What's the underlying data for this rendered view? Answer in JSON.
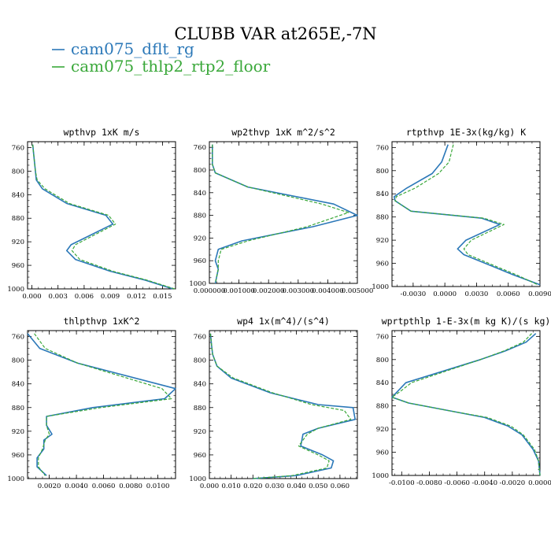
{
  "figure": {
    "title": "CLUBB VAR at265E,-7N",
    "legend": [
      {
        "name": "cam075_dflt_rg",
        "color": "#2b78b8",
        "dash": "solid"
      },
      {
        "name": "cam075_thlp2_rtp2_floor",
        "color": "#3aa83a",
        "dash": "dashed"
      }
    ]
  },
  "chart_data": [
    {
      "type": "line",
      "title": "wpthvp  1xK m/s",
      "xlim": [
        -0.0005,
        0.0165
      ],
      "ylim": [
        1000,
        750
      ],
      "xticks": [
        0.0,
        0.003,
        0.006,
        0.009,
        0.012,
        0.015
      ],
      "xtick_labels": [
        "0.000",
        "0.003",
        "0.006",
        "0.009",
        "0.012",
        "0.015"
      ],
      "yticks": [
        760,
        800,
        840,
        880,
        920,
        960,
        1000
      ],
      "series": [
        {
          "name": "cam075_dflt_rg",
          "points": [
            [
              0.0001,
              755
            ],
            [
              0.0002,
              770
            ],
            [
              0.0004,
              800
            ],
            [
              0.0005,
              815
            ],
            [
              0.0012,
              830
            ],
            [
              0.004,
              855
            ],
            [
              0.0085,
              875
            ],
            [
              0.0093,
              890
            ],
            [
              0.0045,
              925
            ],
            [
              0.004,
              935
            ],
            [
              0.005,
              950
            ],
            [
              0.009,
              970
            ],
            [
              0.013,
              985
            ],
            [
              0.0162,
              1000
            ]
          ]
        },
        {
          "name": "cam075_thlp2_rtp2_floor",
          "points": [
            [
              0.0001,
              755
            ],
            [
              0.0002,
              770
            ],
            [
              0.0004,
              800
            ],
            [
              0.0006,
              815
            ],
            [
              0.0015,
              830
            ],
            [
              0.0043,
              855
            ],
            [
              0.0088,
              875
            ],
            [
              0.0096,
              890
            ],
            [
              0.005,
              925
            ],
            [
              0.0046,
              935
            ],
            [
              0.0055,
              950
            ],
            [
              0.0093,
              970
            ],
            [
              0.0132,
              985
            ],
            [
              0.0164,
              1000
            ]
          ]
        }
      ]
    },
    {
      "type": "line",
      "title": "wp2thvp  1xK m^2/s^2",
      "xlim": [
        0.0,
        0.005
      ],
      "ylim": [
        1000,
        750
      ],
      "xticks": [
        0.0,
        0.001,
        0.002,
        0.003,
        0.004,
        0.005
      ],
      "xtick_labels": [
        "0.000000",
        "0.001000",
        "0.002000",
        "0.003000",
        "0.004000",
        "0.005000"
      ],
      "yticks": [
        760,
        800,
        840,
        880,
        920,
        960,
        1000
      ],
      "series": [
        {
          "name": "cam075_dflt_rg",
          "points": [
            [
              0.0001,
              755
            ],
            [
              0.0001,
              770
            ],
            [
              0.0001,
              790
            ],
            [
              0.0002,
              805
            ],
            [
              0.0013,
              830
            ],
            [
              0.0042,
              860
            ],
            [
              0.005,
              880
            ],
            [
              0.0035,
              900
            ],
            [
              0.0011,
              925
            ],
            [
              0.0003,
              940
            ],
            [
              0.0002,
              960
            ],
            [
              0.0003,
              975
            ],
            [
              0.0002,
              1000
            ]
          ]
        },
        {
          "name": "cam075_thlp2_rtp2_floor",
          "points": [
            [
              0.0001,
              755
            ],
            [
              0.0001,
              770
            ],
            [
              0.0001,
              790
            ],
            [
              0.0002,
              805
            ],
            [
              0.0013,
              830
            ],
            [
              0.0038,
              860
            ],
            [
              0.0047,
              875
            ],
            [
              0.0033,
              900
            ],
            [
              0.0013,
              925
            ],
            [
              0.0004,
              940
            ],
            [
              0.0003,
              960
            ],
            [
              0.0003,
              975
            ],
            [
              0.0002,
              1000
            ]
          ]
        }
      ]
    },
    {
      "type": "line",
      "title": "rtpthvp  1E-3x(kg/kg) K",
      "xlim": [
        -0.005,
        0.009
      ],
      "ylim": [
        1000,
        750
      ],
      "xticks": [
        -0.003,
        0.0,
        0.003,
        0.006,
        0.009
      ],
      "xtick_labels": [
        "-0.0030",
        "0.0000",
        "0.0030",
        "0.0060",
        "0.0090"
      ],
      "yticks": [
        760,
        800,
        840,
        880,
        920,
        960,
        1000
      ],
      "series": [
        {
          "name": "cam075_dflt_rg",
          "points": [
            [
              0.0003,
              755
            ],
            [
              -0.0003,
              785
            ],
            [
              -0.0012,
              805
            ],
            [
              -0.0036,
              830
            ],
            [
              -0.0048,
              845
            ],
            [
              -0.0047,
              852
            ],
            [
              -0.0032,
              870
            ],
            [
              0.0035,
              882
            ],
            [
              0.0052,
              893
            ],
            [
              0.002,
              920
            ],
            [
              0.0012,
              935
            ],
            [
              0.0018,
              945
            ],
            [
              0.0045,
              965
            ],
            [
              0.0065,
              980
            ],
            [
              0.009,
              997
            ]
          ]
        },
        {
          "name": "cam075_thlp2_rtp2_floor",
          "points": [
            [
              0.0008,
              755
            ],
            [
              0.0004,
              785
            ],
            [
              -0.0006,
              805
            ],
            [
              -0.0028,
              830
            ],
            [
              -0.0046,
              845
            ],
            [
              -0.0047,
              852
            ],
            [
              -0.0032,
              870
            ],
            [
              0.0037,
              882
            ],
            [
              0.0056,
              893
            ],
            [
              0.0025,
              920
            ],
            [
              0.0018,
              935
            ],
            [
              0.0022,
              945
            ],
            [
              0.0048,
              965
            ],
            [
              0.0068,
              980
            ],
            [
              0.0088,
              997
            ]
          ]
        }
      ]
    },
    {
      "type": "line",
      "title": "thlpthvp  1xK^2",
      "xlim": [
        0.0004,
        0.0113
      ],
      "ylim": [
        1000,
        750
      ],
      "xticks": [
        0.002,
        0.004,
        0.006,
        0.008,
        0.01
      ],
      "xtick_labels": [
        "0.0020",
        "0.0040",
        "0.0060",
        "0.0080",
        "0.0100"
      ],
      "yticks": [
        760,
        800,
        840,
        880,
        920,
        960,
        1000
      ],
      "series": [
        {
          "name": "cam075_dflt_rg",
          "points": [
            [
              0.0004,
              755
            ],
            [
              0.0013,
              780
            ],
            [
              0.0041,
              805
            ],
            [
              0.0113,
              848
            ],
            [
              0.0105,
              865
            ],
            [
              0.0052,
              880
            ],
            [
              0.0018,
              895
            ],
            [
              0.0018,
              910
            ],
            [
              0.0022,
              925
            ],
            [
              0.0016,
              935
            ],
            [
              0.0016,
              950
            ],
            [
              0.0011,
              965
            ],
            [
              0.0011,
              980
            ],
            [
              0.0018,
              995
            ]
          ]
        },
        {
          "name": "cam075_thlp2_rtp2_floor",
          "points": [
            [
              0.0009,
              755
            ],
            [
              0.0017,
              780
            ],
            [
              0.0041,
              805
            ],
            [
              0.0103,
              848
            ],
            [
              0.011,
              865
            ],
            [
              0.0058,
              880
            ],
            [
              0.0018,
              895
            ],
            [
              0.0018,
              910
            ],
            [
              0.002,
              925
            ],
            [
              0.0017,
              935
            ],
            [
              0.0015,
              950
            ],
            [
              0.0012,
              965
            ],
            [
              0.0012,
              980
            ],
            [
              0.0017,
              995
            ]
          ]
        }
      ]
    },
    {
      "type": "line",
      "title": "wp4  1x(m^4)/(s^4)",
      "xlim": [
        0.0,
        0.068
      ],
      "ylim": [
        1000,
        750
      ],
      "xticks": [
        0.0,
        0.01,
        0.02,
        0.03,
        0.04,
        0.05,
        0.06
      ],
      "xtick_labels": [
        "0.000",
        "0.010",
        "0.020",
        "0.030",
        "0.040",
        "0.050",
        "0.060"
      ],
      "yticks": [
        760,
        800,
        840,
        880,
        920,
        960,
        1000
      ],
      "series": [
        {
          "name": "cam075_dflt_rg",
          "points": [
            [
              0.0005,
              755
            ],
            [
              0.001,
              775
            ],
            [
              0.0015,
              790
            ],
            [
              0.0035,
              810
            ],
            [
              0.01,
              830
            ],
            [
              0.028,
              855
            ],
            [
              0.05,
              875
            ],
            [
              0.066,
              880
            ],
            [
              0.067,
              900
            ],
            [
              0.05,
              915
            ],
            [
              0.043,
              925
            ],
            [
              0.042,
              945
            ],
            [
              0.052,
              960
            ],
            [
              0.057,
              970
            ],
            [
              0.056,
              982
            ],
            [
              0.04,
              995
            ],
            [
              0.02,
              1000
            ]
          ]
        },
        {
          "name": "cam075_thlp2_rtp2_floor",
          "points": [
            [
              0.0005,
              755
            ],
            [
              0.001,
              775
            ],
            [
              0.0015,
              790
            ],
            [
              0.0035,
              810
            ],
            [
              0.011,
              830
            ],
            [
              0.029,
              855
            ],
            [
              0.047,
              875
            ],
            [
              0.062,
              885
            ],
            [
              0.065,
              900
            ],
            [
              0.05,
              915
            ],
            [
              0.045,
              925
            ],
            [
              0.041,
              945
            ],
            [
              0.05,
              960
            ],
            [
              0.055,
              970
            ],
            [
              0.054,
              982
            ],
            [
              0.038,
              995
            ],
            [
              0.02,
              1000
            ]
          ]
        }
      ]
    },
    {
      "type": "line",
      "title": "wprtpthlp  1-E-3x(m kg K)/(s kg)",
      "xlim": [
        -0.0107,
        0.0
      ],
      "ylim": [
        1000,
        750
      ],
      "xticks": [
        -0.01,
        -0.008,
        -0.006,
        -0.004,
        -0.002,
        0.0
      ],
      "xtick_labels": [
        "-0.0100",
        "-0.0080",
        "-0.0060",
        "-0.0040",
        "-0.0020",
        "0.0000"
      ],
      "yticks": [
        760,
        800,
        840,
        880,
        920,
        960,
        1000
      ],
      "series": [
        {
          "name": "cam075_dflt_rg",
          "points": [
            [
              -0.0003,
              755
            ],
            [
              -0.001,
              770
            ],
            [
              -0.0025,
              785
            ],
            [
              -0.0043,
              800
            ],
            [
              -0.0097,
              840
            ],
            [
              -0.0103,
              855
            ],
            [
              -0.0107,
              865
            ],
            [
              -0.0095,
              875
            ],
            [
              -0.0062,
              890
            ],
            [
              -0.004,
              900
            ],
            [
              -0.0023,
              915
            ],
            [
              -0.0013,
              930
            ],
            [
              -0.0005,
              955
            ],
            [
              -0.0001,
              975
            ],
            [
              0.0,
              1000
            ]
          ]
        },
        {
          "name": "cam075_thlp2_rtp2_floor",
          "points": [
            [
              -0.0006,
              755
            ],
            [
              -0.0012,
              770
            ],
            [
              -0.0026,
              785
            ],
            [
              -0.0043,
              800
            ],
            [
              -0.0093,
              840
            ],
            [
              -0.0101,
              855
            ],
            [
              -0.0107,
              865
            ],
            [
              -0.0095,
              875
            ],
            [
              -0.0062,
              890
            ],
            [
              -0.0038,
              900
            ],
            [
              -0.0021,
              915
            ],
            [
              -0.0012,
              930
            ],
            [
              -0.0004,
              955
            ],
            [
              -0.0001,
              975
            ],
            [
              0.0,
              1000
            ]
          ]
        }
      ]
    }
  ]
}
